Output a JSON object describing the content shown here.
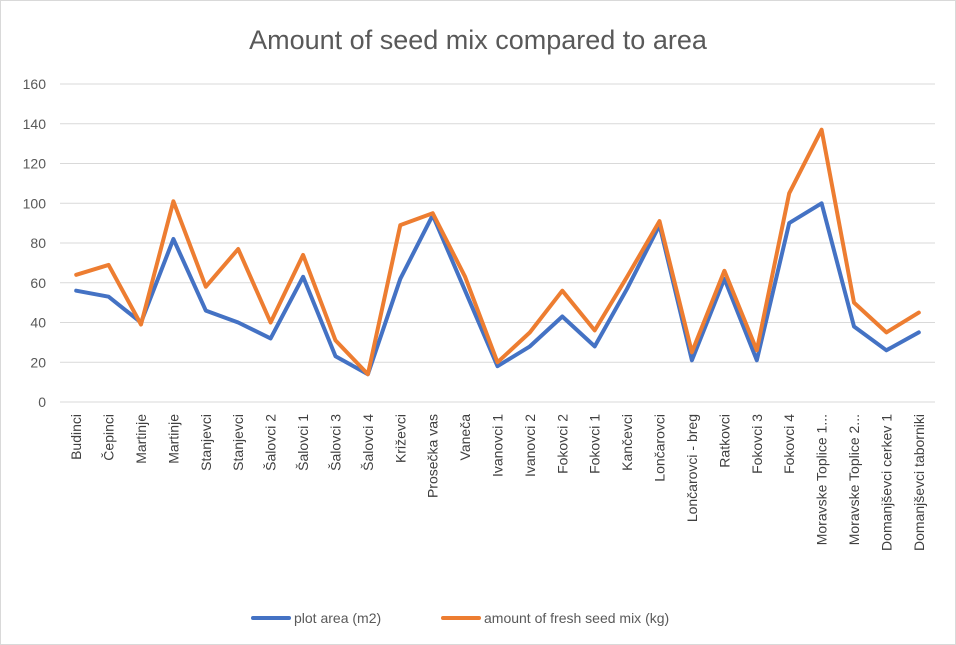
{
  "chart_data": {
    "type": "line",
    "title": "Amount of seed mix compared to area",
    "xlabel": "",
    "ylabel": "",
    "ylim": [
      0,
      160
    ],
    "yticks": [
      0,
      20,
      40,
      60,
      80,
      100,
      120,
      140,
      160
    ],
    "grid": true,
    "legend_position": "bottom",
    "categories": [
      "Budinci",
      "Čepinci",
      "Martinje",
      "Martinje",
      "Stanjevci",
      "Stanjevci",
      "Šalovci 2",
      "Šalovci 1",
      "Šalovci 3",
      "Šalovci 4",
      "Križevci",
      "Prosečka vas",
      "Vaneča",
      "Ivanovci 1",
      "Ivanovci 2",
      "Fokovci 2",
      "Fokovci 1",
      "Kančevci",
      "Lončarovci",
      "Lončarovci - breg",
      "Ratkovci",
      "Fokovci 3",
      "Fokovci 4",
      "Moravske Toplice 1...",
      "Moravske Toplice  2...",
      "Domanjševci cerkev 1",
      "Domanjševci taborniki"
    ],
    "series": [
      {
        "name": "plot area (m2)",
        "color": "#4472c4",
        "values": [
          56,
          53,
          40,
          82,
          46,
          40,
          32,
          63,
          23,
          14,
          62,
          94,
          56,
          18,
          28,
          43,
          28,
          57,
          89,
          21,
          62,
          21,
          90,
          100,
          38,
          26,
          35
        ]
      },
      {
        "name": "amount of fresh seed mix (kg)",
        "color": "#ed7d31",
        "values": [
          64,
          69,
          39,
          101,
          58,
          77,
          40,
          74,
          31,
          14,
          89,
          95,
          63,
          20,
          35,
          56,
          36,
          63,
          91,
          25,
          66,
          26,
          105,
          137,
          50,
          35,
          45
        ]
      }
    ]
  }
}
